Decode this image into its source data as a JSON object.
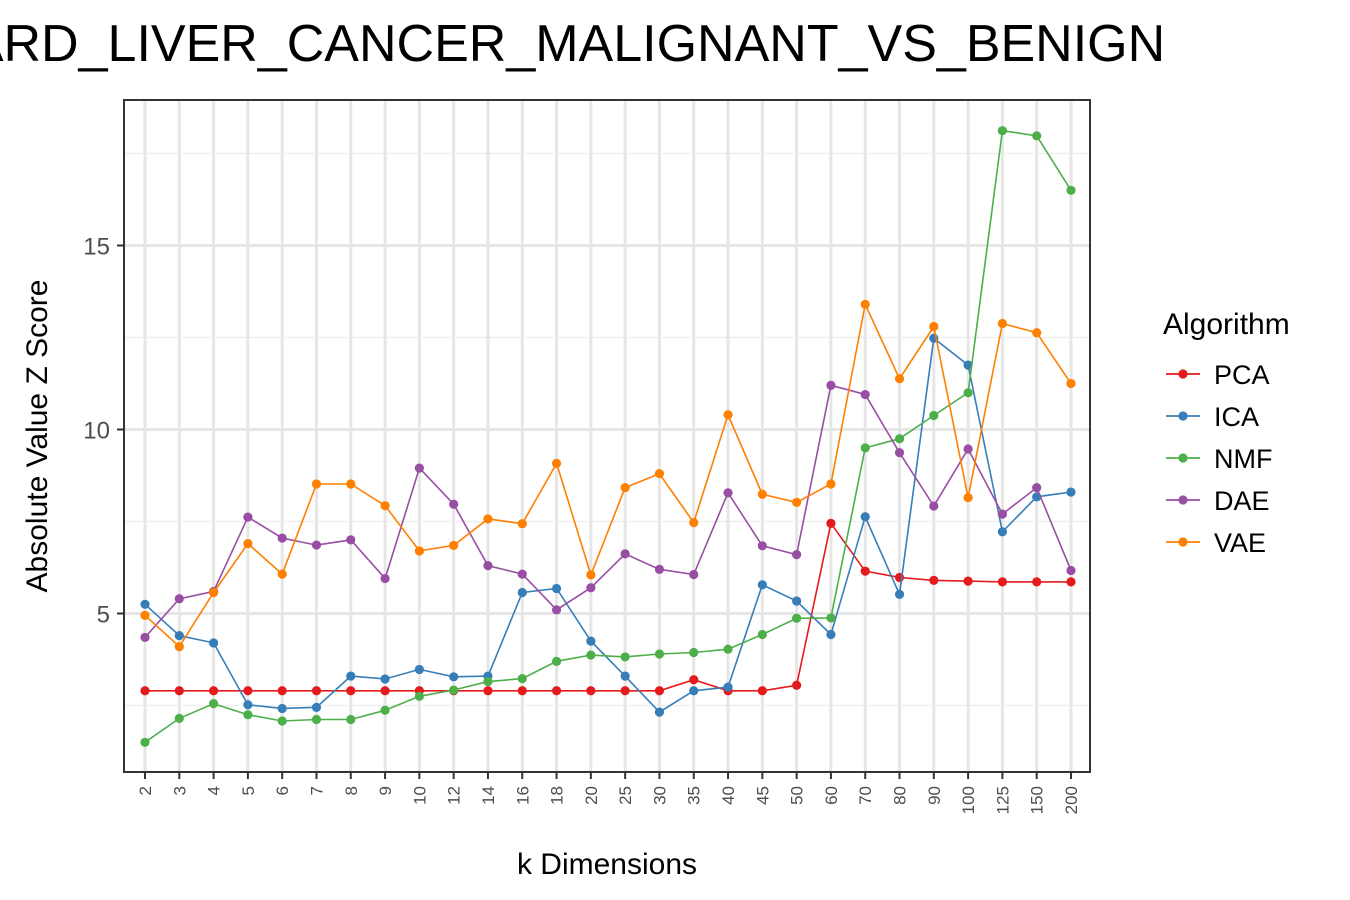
{
  "chart_data": {
    "type": "line",
    "title": "VARD_LIVER_CANCER_MALIGNANT_VS_BENIGN",
    "xlabel": "k Dimensions",
    "ylabel": "Absolute Value Z Score",
    "categories": [
      "2",
      "3",
      "4",
      "5",
      "6",
      "7",
      "8",
      "9",
      "10",
      "12",
      "14",
      "16",
      "18",
      "20",
      "25",
      "30",
      "35",
      "40",
      "45",
      "50",
      "60",
      "70",
      "80",
      "90",
      "100",
      "125",
      "150",
      "200"
    ],
    "y_ticks": [
      5,
      10,
      15
    ],
    "ylim": [
      0.5,
      19.0
    ],
    "grid": true,
    "legend": {
      "title": "Algorithm",
      "position": "right"
    },
    "series": [
      {
        "name": "PCA",
        "color": "#e41a1c",
        "values": [
          2.9,
          2.9,
          2.9,
          2.9,
          2.9,
          2.9,
          2.9,
          2.9,
          2.9,
          2.9,
          2.9,
          2.9,
          2.9,
          2.9,
          2.9,
          2.9,
          3.2,
          2.9,
          2.9,
          3.05,
          7.45,
          6.15,
          5.98,
          5.9,
          5.88,
          5.86,
          5.86,
          5.86
        ]
      },
      {
        "name": "ICA",
        "color": "#377eb8",
        "values": [
          5.25,
          4.4,
          4.2,
          2.52,
          2.42,
          2.45,
          3.3,
          3.22,
          3.48,
          3.28,
          3.3,
          5.57,
          5.68,
          4.25,
          3.3,
          2.32,
          2.9,
          3.0,
          5.78,
          5.34,
          4.43,
          7.63,
          5.52,
          12.48,
          11.75,
          7.22,
          8.17,
          8.3
        ]
      },
      {
        "name": "NMF",
        "color": "#4daf4a",
        "values": [
          1.5,
          2.15,
          2.55,
          2.25,
          2.08,
          2.12,
          2.12,
          2.37,
          2.75,
          2.92,
          3.15,
          3.23,
          3.7,
          3.87,
          3.82,
          3.9,
          3.94,
          4.03,
          4.43,
          4.87,
          4.88,
          9.5,
          9.75,
          10.38,
          11.0,
          18.12,
          17.98,
          16.5
        ]
      },
      {
        "name": "DAE",
        "color": "#984ea3",
        "values": [
          4.35,
          5.4,
          5.6,
          7.62,
          7.05,
          6.86,
          7.0,
          5.95,
          8.95,
          7.97,
          6.3,
          6.07,
          5.1,
          5.7,
          6.62,
          6.2,
          6.06,
          8.28,
          6.84,
          6.6,
          11.2,
          10.95,
          9.37,
          7.92,
          9.47,
          7.7,
          8.42,
          6.17
        ]
      },
      {
        "name": "VAE",
        "color": "#ff7f00",
        "values": [
          4.95,
          4.1,
          5.57,
          6.9,
          6.07,
          8.52,
          8.52,
          7.93,
          6.7,
          6.85,
          7.57,
          7.44,
          9.08,
          6.05,
          8.42,
          8.8,
          7.47,
          10.4,
          8.24,
          8.02,
          8.52,
          13.4,
          11.38,
          12.8,
          8.15,
          12.88,
          12.63,
          11.25
        ]
      }
    ]
  }
}
